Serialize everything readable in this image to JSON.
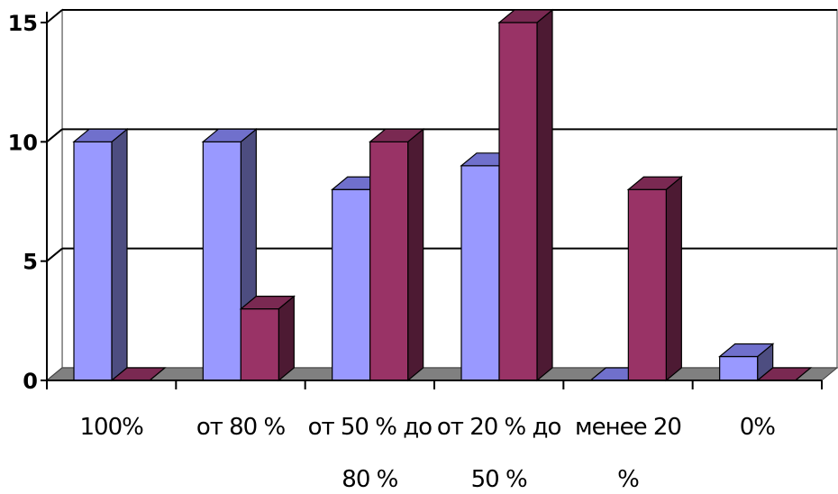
{
  "chart_data": {
    "type": "bar",
    "title": "",
    "xlabel": "",
    "ylabel": "",
    "ylim": [
      0,
      15
    ],
    "y_ticks": [
      "0",
      "5",
      "10",
      "15"
    ],
    "grid": true,
    "legend": "none",
    "categories": [
      [
        "100%"
      ],
      [
        "от 80 %"
      ],
      [
        "от 50 % до",
        "80 %"
      ],
      [
        "от 20 % до",
        "50 %"
      ],
      [
        "менее 20",
        "%"
      ],
      [
        "0%"
      ]
    ],
    "series": [
      {
        "values": [
          10,
          10,
          8,
          9,
          0,
          1
        ],
        "front_color": "#9999FF",
        "top_color": "#7070CC",
        "side_color": "#4D4D80"
      },
      {
        "values": [
          0,
          3,
          10,
          15,
          8,
          0
        ],
        "front_color": "#993366",
        "top_color": "#7A2952",
        "side_color": "#4D1A33"
      }
    ]
  }
}
